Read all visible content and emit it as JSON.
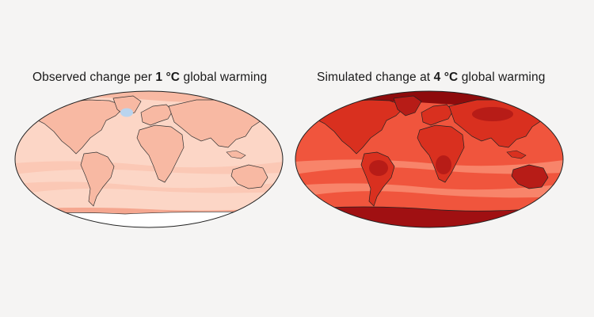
{
  "panels": [
    {
      "title_prefix": "Observed change per ",
      "title_value": "1 °C",
      "title_suffix": " global warming",
      "colors": {
        "ocean": "#fcd6c6",
        "land": "#f8b9a3",
        "band": "#fbc8b5",
        "cold_spot": "#b9d4ee",
        "antarctica": "#ffffff",
        "antarctic_band": "#f5a790"
      }
    },
    {
      "title_prefix": "Simulated change at ",
      "title_value": "4 °C",
      "title_suffix": " global warming",
      "colors": {
        "ocean": "#f0553d",
        "land": "#d9301f",
        "band": "#f8846a",
        "arctic": "#8e0b0c",
        "antarctica": "#a01012",
        "hot": "#b71c17"
      }
    }
  ]
}
